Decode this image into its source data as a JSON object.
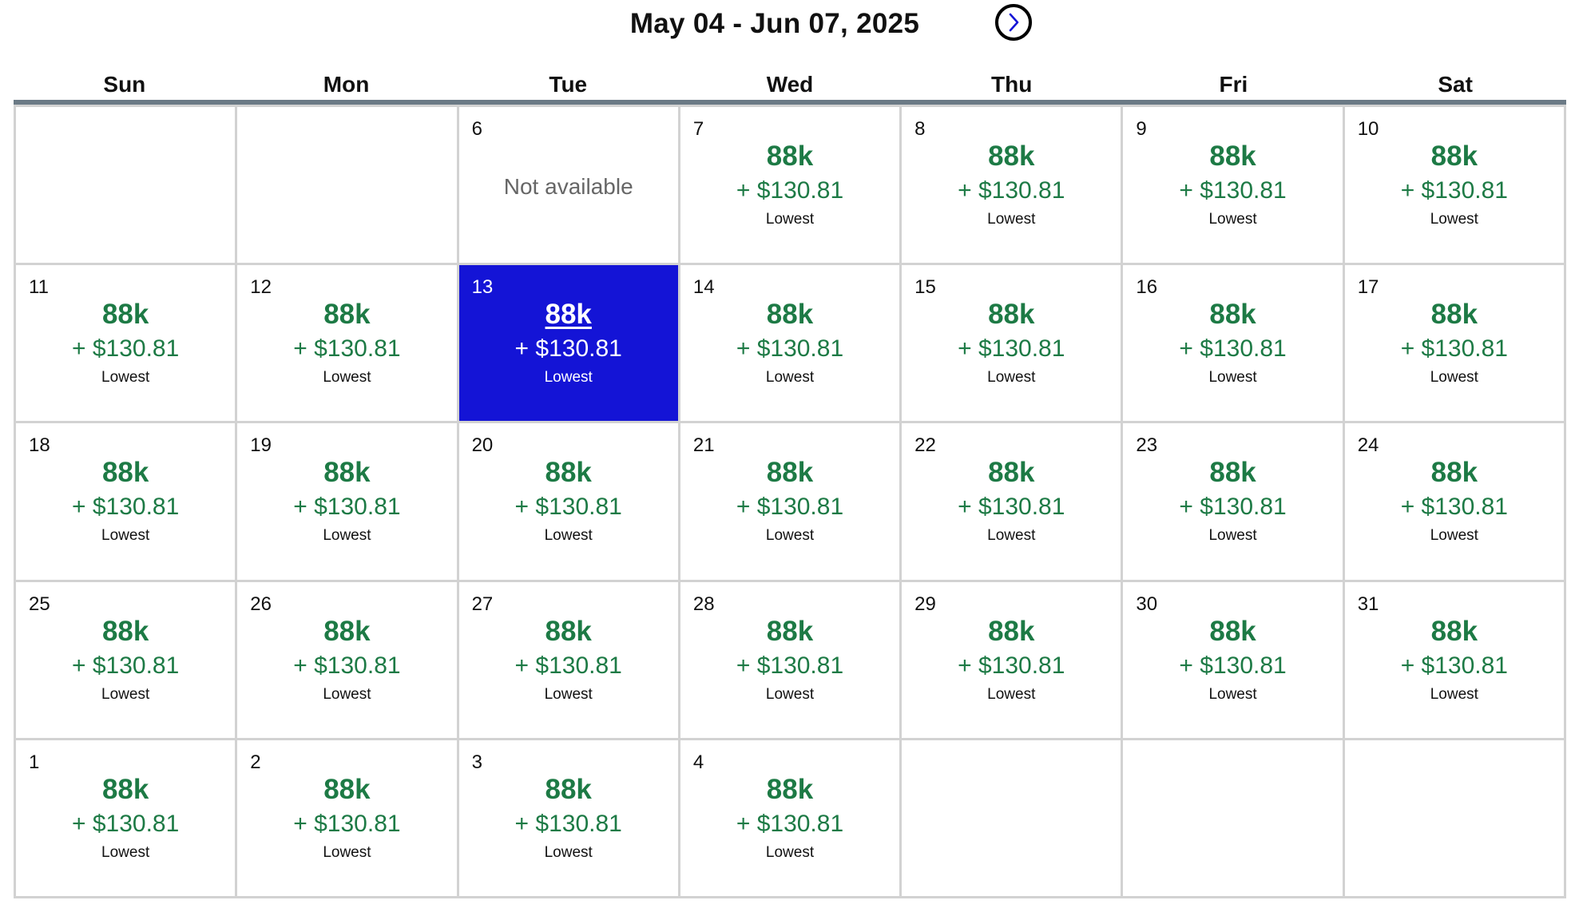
{
  "header": {
    "range_title": "May 04 - Jun 07, 2025",
    "next_icon": "chevron-right-icon"
  },
  "weekdays": [
    "Sun",
    "Mon",
    "Tue",
    "Wed",
    "Thu",
    "Fri",
    "Sat"
  ],
  "colors": {
    "fare_green": "#1d7a45",
    "selected_bg": "#1414d6",
    "grid_line": "#d2d2d2",
    "header_rule": "#6b7a86"
  },
  "weeks": [
    [
      {
        "day": "",
        "state": "empty"
      },
      {
        "day": "",
        "state": "empty"
      },
      {
        "day": "6",
        "state": "unavailable",
        "note": "Not available"
      },
      {
        "day": "7",
        "state": "fare",
        "points": "88k",
        "cash": "+ $130.81",
        "tag": "Lowest"
      },
      {
        "day": "8",
        "state": "fare",
        "points": "88k",
        "cash": "+ $130.81",
        "tag": "Lowest"
      },
      {
        "day": "9",
        "state": "fare",
        "points": "88k",
        "cash": "+ $130.81",
        "tag": "Lowest"
      },
      {
        "day": "10",
        "state": "fare",
        "points": "88k",
        "cash": "+ $130.81",
        "tag": "Lowest"
      }
    ],
    [
      {
        "day": "11",
        "state": "fare",
        "points": "88k",
        "cash": "+ $130.81",
        "tag": "Lowest"
      },
      {
        "day": "12",
        "state": "fare",
        "points": "88k",
        "cash": "+ $130.81",
        "tag": "Lowest"
      },
      {
        "day": "13",
        "state": "fare",
        "selected": true,
        "points": "88k",
        "cash": "+ $130.81",
        "tag": "Lowest"
      },
      {
        "day": "14",
        "state": "fare",
        "points": "88k",
        "cash": "+ $130.81",
        "tag": "Lowest"
      },
      {
        "day": "15",
        "state": "fare",
        "points": "88k",
        "cash": "+ $130.81",
        "tag": "Lowest"
      },
      {
        "day": "16",
        "state": "fare",
        "points": "88k",
        "cash": "+ $130.81",
        "tag": "Lowest"
      },
      {
        "day": "17",
        "state": "fare",
        "points": "88k",
        "cash": "+ $130.81",
        "tag": "Lowest"
      }
    ],
    [
      {
        "day": "18",
        "state": "fare",
        "points": "88k",
        "cash": "+ $130.81",
        "tag": "Lowest"
      },
      {
        "day": "19",
        "state": "fare",
        "points": "88k",
        "cash": "+ $130.81",
        "tag": "Lowest"
      },
      {
        "day": "20",
        "state": "fare",
        "points": "88k",
        "cash": "+ $130.81",
        "tag": "Lowest"
      },
      {
        "day": "21",
        "state": "fare",
        "points": "88k",
        "cash": "+ $130.81",
        "tag": "Lowest"
      },
      {
        "day": "22",
        "state": "fare",
        "points": "88k",
        "cash": "+ $130.81",
        "tag": "Lowest"
      },
      {
        "day": "23",
        "state": "fare",
        "points": "88k",
        "cash": "+ $130.81",
        "tag": "Lowest"
      },
      {
        "day": "24",
        "state": "fare",
        "points": "88k",
        "cash": "+ $130.81",
        "tag": "Lowest"
      }
    ],
    [
      {
        "day": "25",
        "state": "fare",
        "points": "88k",
        "cash": "+ $130.81",
        "tag": "Lowest"
      },
      {
        "day": "26",
        "state": "fare",
        "points": "88k",
        "cash": "+ $130.81",
        "tag": "Lowest"
      },
      {
        "day": "27",
        "state": "fare",
        "points": "88k",
        "cash": "+ $130.81",
        "tag": "Lowest"
      },
      {
        "day": "28",
        "state": "fare",
        "points": "88k",
        "cash": "+ $130.81",
        "tag": "Lowest"
      },
      {
        "day": "29",
        "state": "fare",
        "points": "88k",
        "cash": "+ $130.81",
        "tag": "Lowest"
      },
      {
        "day": "30",
        "state": "fare",
        "points": "88k",
        "cash": "+ $130.81",
        "tag": "Lowest"
      },
      {
        "day": "31",
        "state": "fare",
        "points": "88k",
        "cash": "+ $130.81",
        "tag": "Lowest"
      }
    ],
    [
      {
        "day": "1",
        "state": "fare",
        "points": "88k",
        "cash": "+ $130.81",
        "tag": "Lowest"
      },
      {
        "day": "2",
        "state": "fare",
        "points": "88k",
        "cash": "+ $130.81",
        "tag": "Lowest"
      },
      {
        "day": "3",
        "state": "fare",
        "points": "88k",
        "cash": "+ $130.81",
        "tag": "Lowest"
      },
      {
        "day": "4",
        "state": "fare",
        "points": "88k",
        "cash": "+ $130.81",
        "tag": "Lowest"
      },
      {
        "day": "",
        "state": "empty"
      },
      {
        "day": "",
        "state": "empty"
      },
      {
        "day": "",
        "state": "empty"
      }
    ]
  ]
}
